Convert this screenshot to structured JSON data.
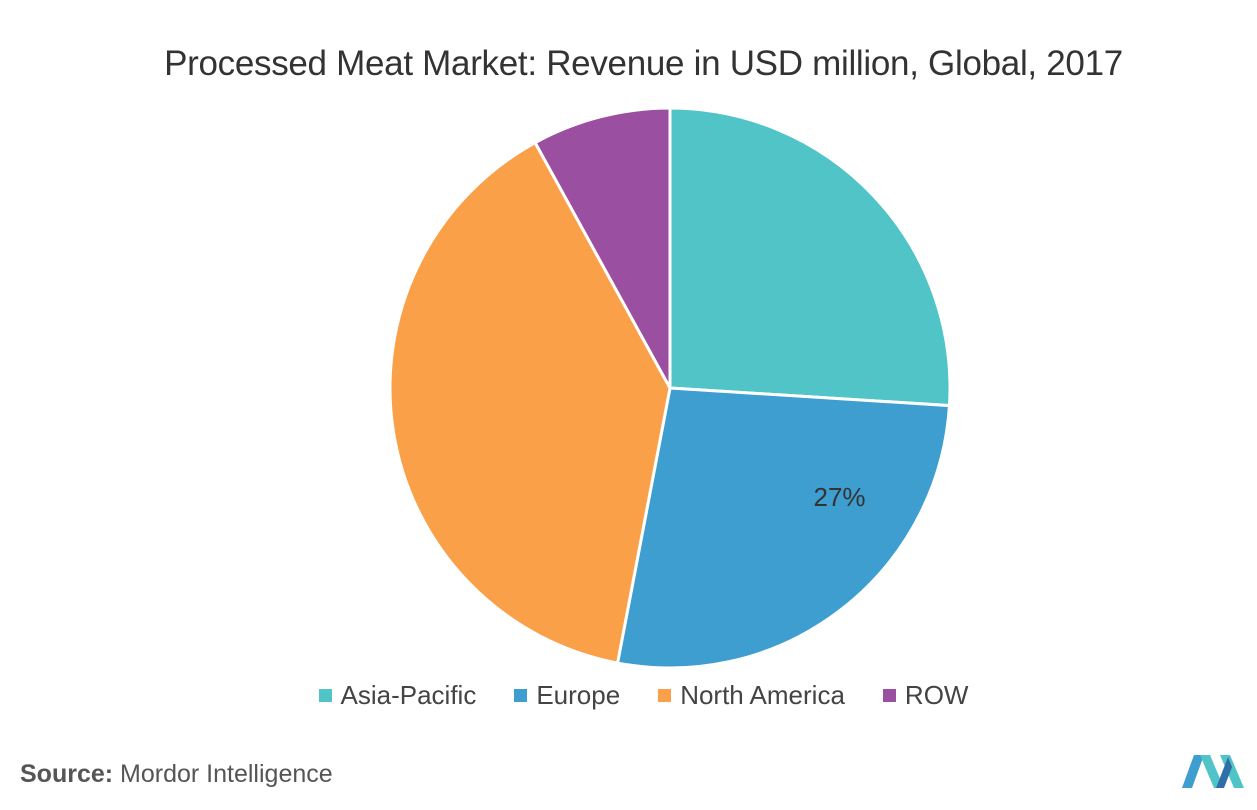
{
  "chart_data": {
    "type": "pie",
    "title": "Processed Meat Market: Revenue in USD million, Global, 2017",
    "slices": [
      {
        "name": "Asia-Pacific",
        "value": 26,
        "color": "#50c4c6"
      },
      {
        "name": "Europe",
        "value": 27,
        "color": "#3d9ecf",
        "label": "27%"
      },
      {
        "name": "North America",
        "value": 39,
        "color": "#faa049"
      },
      {
        "name": "ROW",
        "value": 8,
        "color": "#9b4fa0"
      }
    ],
    "start_angle_deg": 0,
    "direction": "clockwise",
    "legend_position": "bottom"
  },
  "source": {
    "label": "Source:",
    "text": "Mordor Intelligence"
  },
  "logo": {
    "colors": [
      "#3d9ecf",
      "#50c4c6",
      "#2e6fa8"
    ]
  }
}
